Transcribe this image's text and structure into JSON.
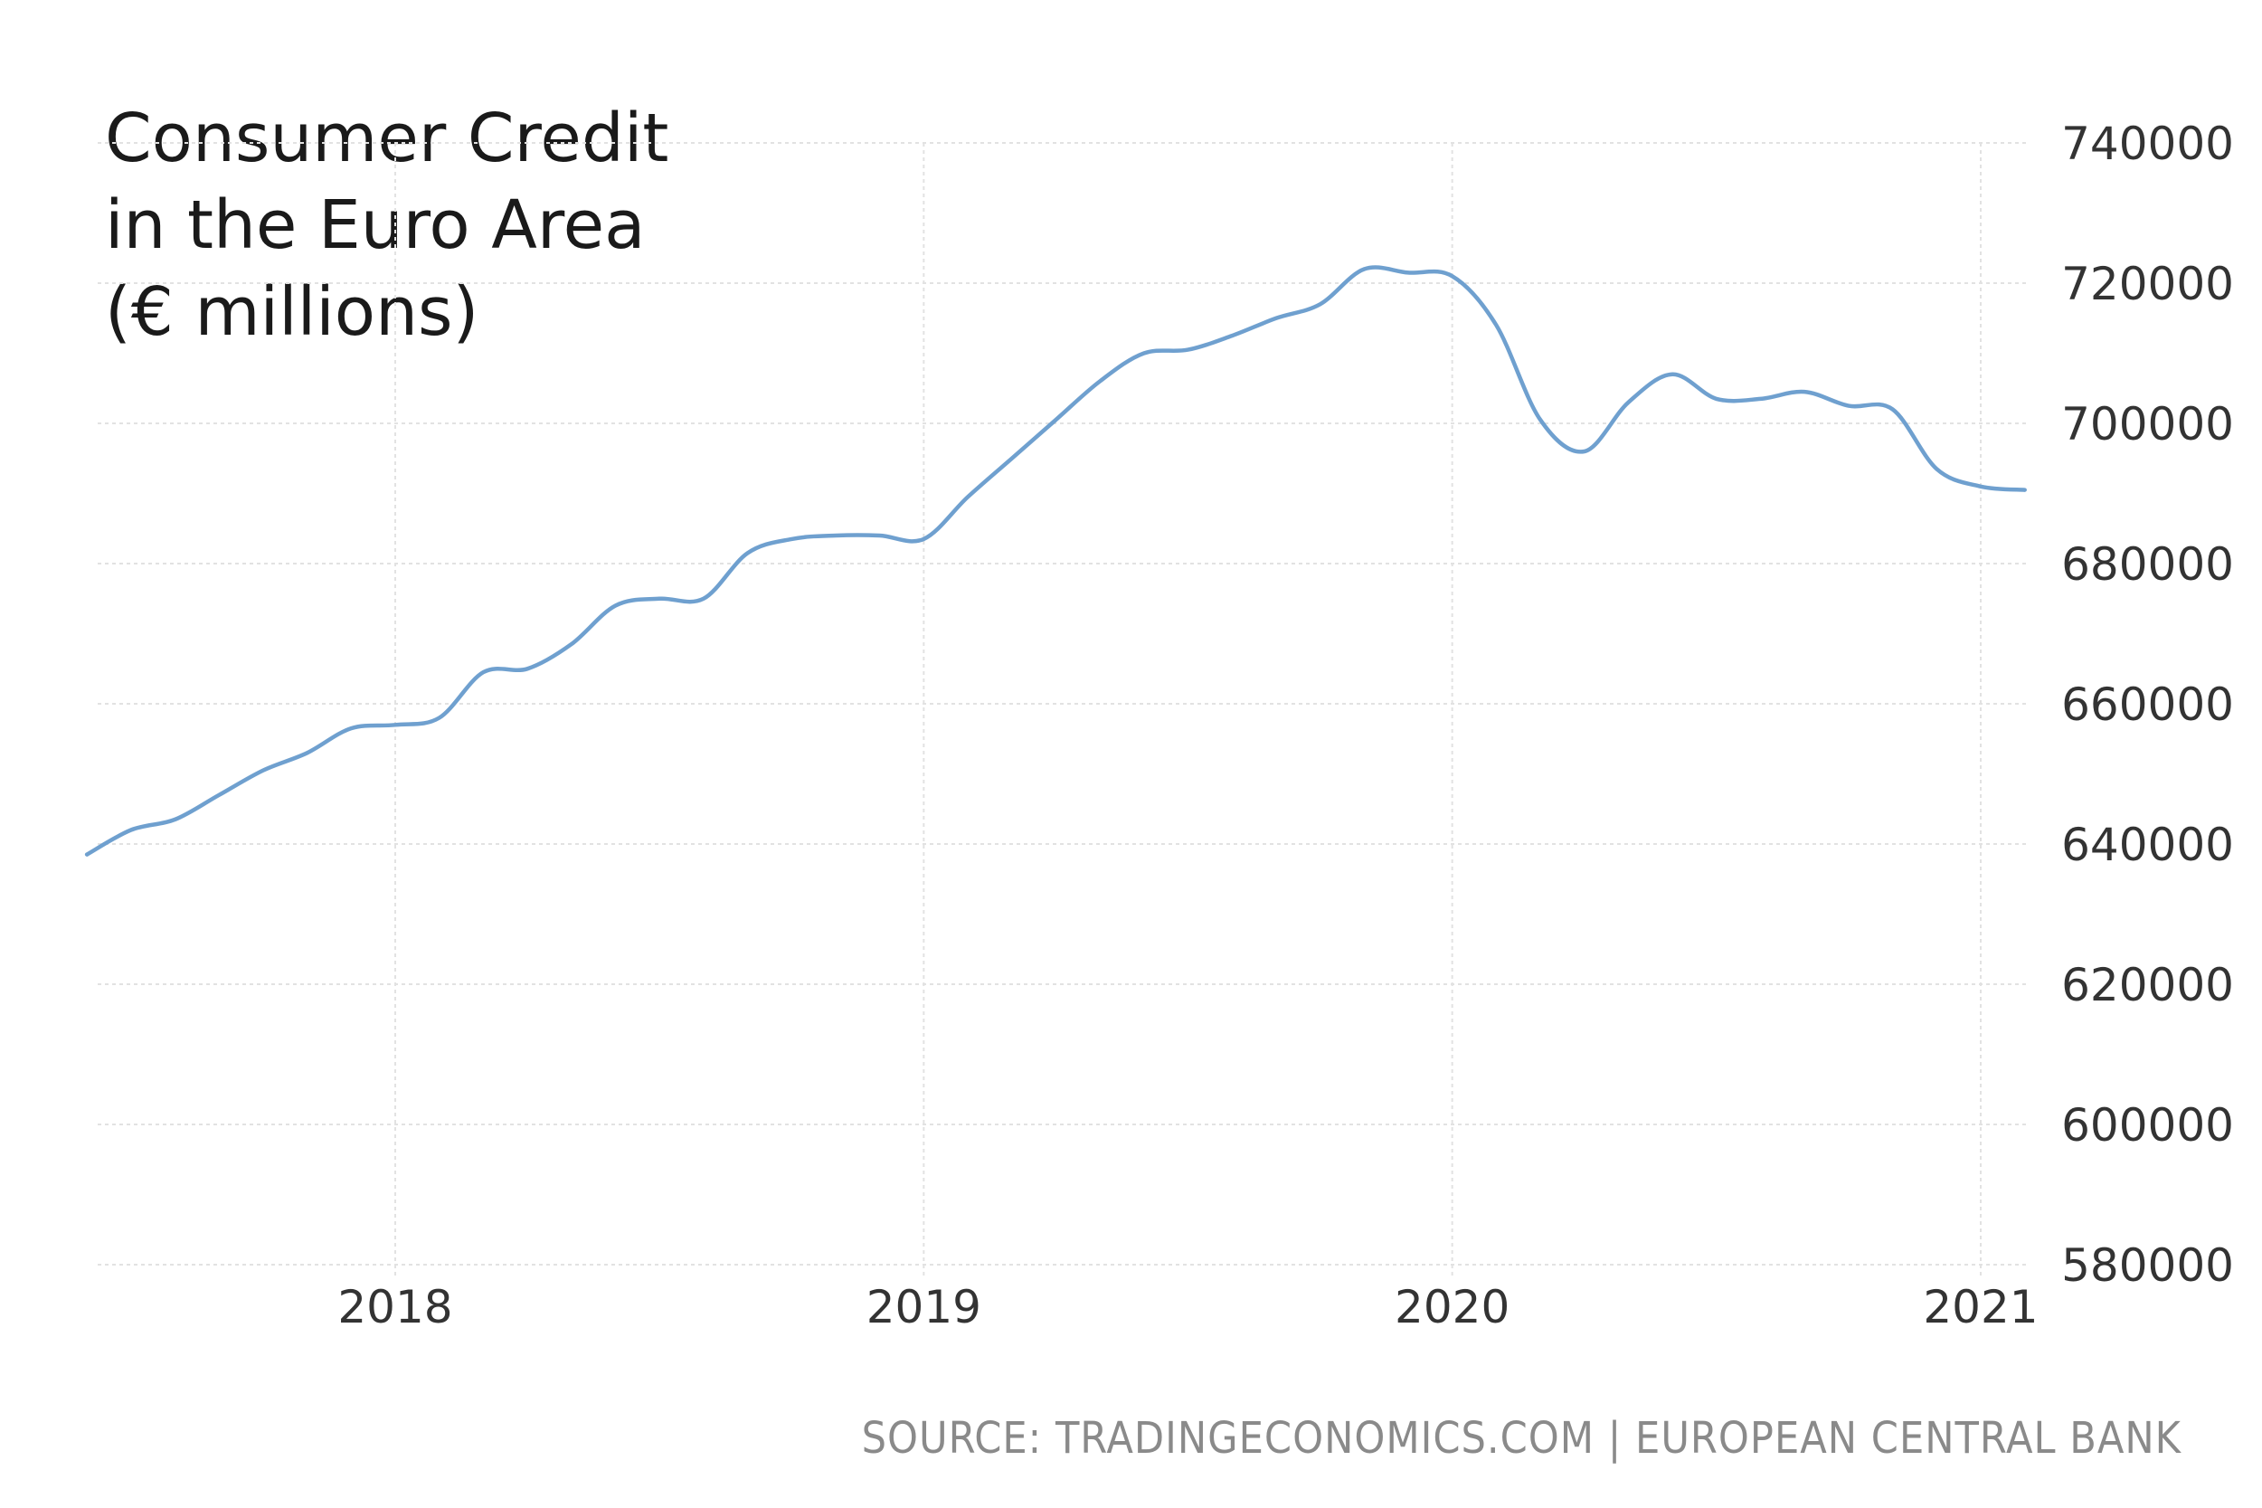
{
  "title_lines": [
    "Consumer Credit",
    "in the Euro Area",
    "(€ millions)"
  ],
  "source": "SOURCE: TRADINGECONOMICS.COM | EUROPEAN CENTRAL BANK",
  "colors": {
    "series": "#6fa0cf",
    "grid": "#e2e2e2",
    "text": "#333333",
    "source": "#8a8a8a"
  },
  "chart_data": {
    "type": "line",
    "title": "Consumer Credit in the Euro Area (€ millions)",
    "xlabel": "",
    "ylabel": "",
    "x_ticks": [
      "2018",
      "2019",
      "2020",
      "2021"
    ],
    "y_ticks": [
      740000,
      720000,
      700000,
      680000,
      660000,
      640000,
      620000,
      600000,
      580000
    ],
    "ylim": [
      580000,
      740000
    ],
    "xlim": [
      "2017-06",
      "2021-02"
    ],
    "y_axis_side": "right",
    "grid": true,
    "legend": "none",
    "series": [
      {
        "x": [
          "2017-06",
          "2017-07",
          "2017-08",
          "2017-09",
          "2017-10",
          "2017-11",
          "2017-12",
          "2018-01",
          "2018-02",
          "2018-03",
          "2018-04",
          "2018-05",
          "2018-06",
          "2018-07",
          "2018-08",
          "2018-09",
          "2018-10",
          "2018-11",
          "2018-12",
          "2019-01",
          "2019-02",
          "2019-03",
          "2019-04",
          "2019-05",
          "2019-06",
          "2019-07",
          "2019-08",
          "2019-09",
          "2019-10",
          "2019-11",
          "2019-12",
          "2020-01",
          "2020-02",
          "2020-03",
          "2020-04",
          "2020-05",
          "2020-06",
          "2020-07",
          "2020-08",
          "2020-09",
          "2020-10",
          "2020-11",
          "2020-12",
          "2021-01",
          "2021-02"
        ],
        "values": [
          638500,
          642000,
          643500,
          647000,
          650500,
          653000,
          656500,
          657000,
          658000,
          664500,
          665000,
          668500,
          674000,
          675000,
          675000,
          681500,
          683500,
          684000,
          684000,
          683500,
          689500,
          695000,
          700500,
          706000,
          710000,
          710500,
          712500,
          715000,
          717000,
          722000,
          721500,
          721000,
          714000,
          700500,
          696000,
          703000,
          707000,
          703500,
          703500,
          704500,
          702500,
          702000,
          693500,
          691000,
          690500
        ]
      }
    ]
  }
}
